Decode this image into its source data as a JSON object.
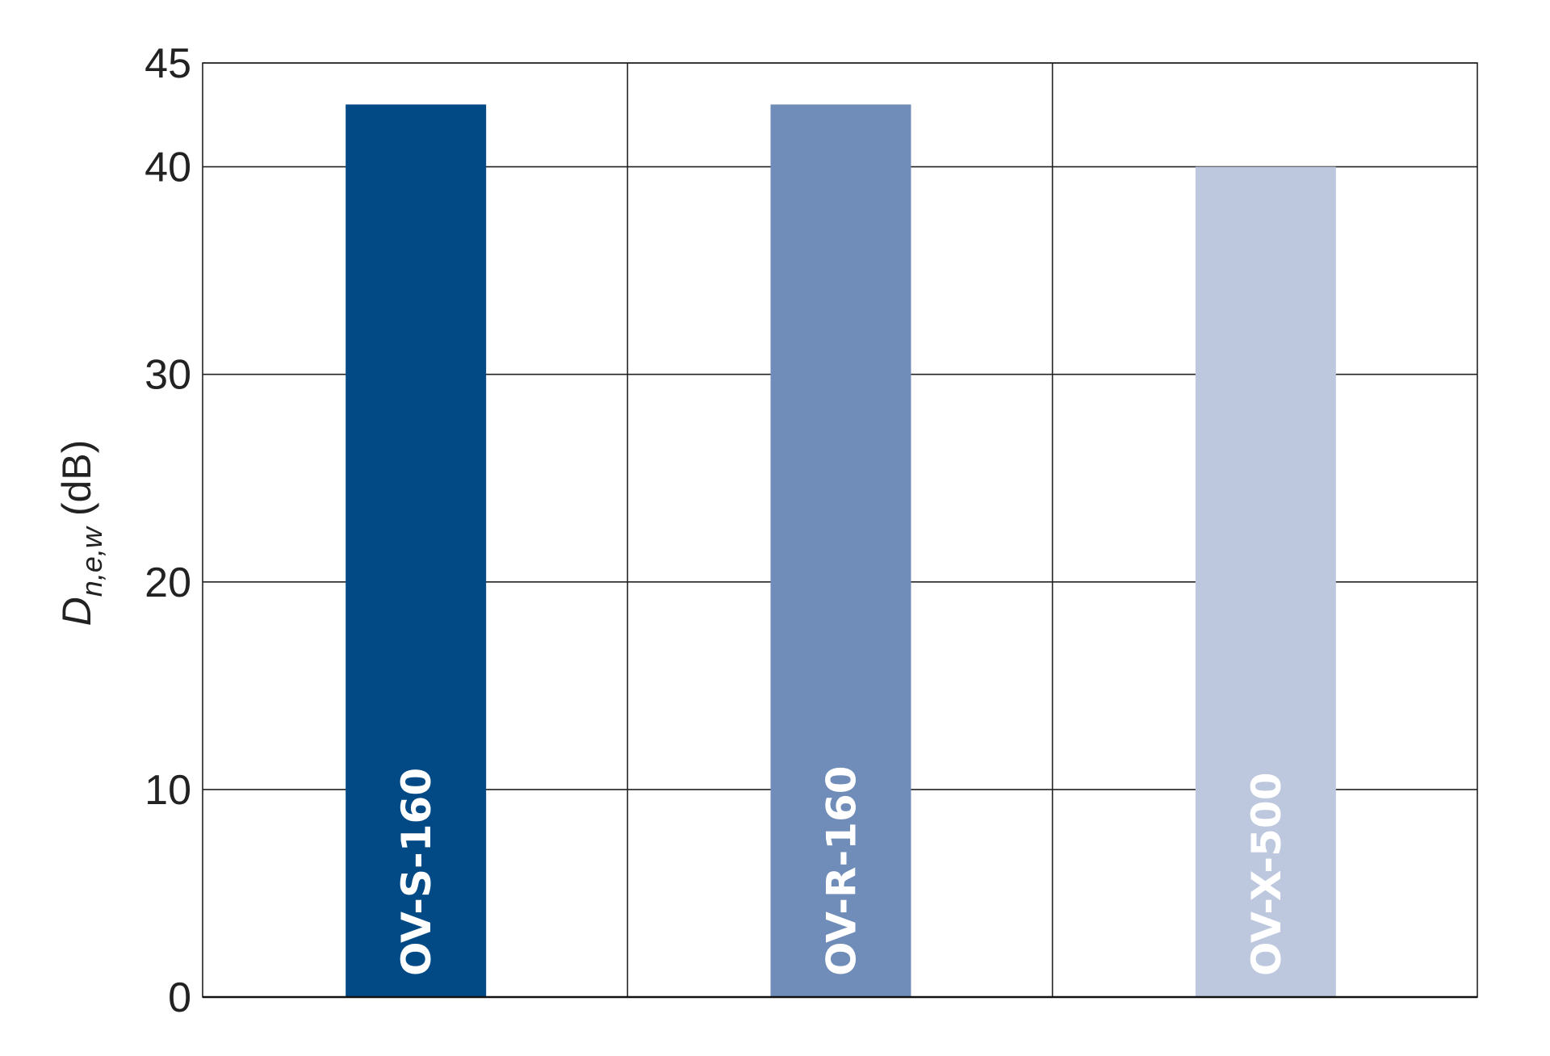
{
  "chart_data": {
    "type": "bar",
    "title": "",
    "xlabel": "",
    "ylabel": {
      "main": "D",
      "subscript": "n,e,w",
      "unit": "(dB)"
    },
    "categories": [
      "OV-S-160",
      "OV-R-160",
      "OV-X-500"
    ],
    "values": [
      43,
      43,
      40
    ],
    "colors": [
      "#024a86",
      "#6f8db8",
      "#bdc8df"
    ],
    "ylim": [
      0,
      45
    ],
    "yticks": [
      0,
      10,
      20,
      30,
      40,
      45
    ],
    "grid": true,
    "legend": "none",
    "category_labels_inside_bars": true
  }
}
